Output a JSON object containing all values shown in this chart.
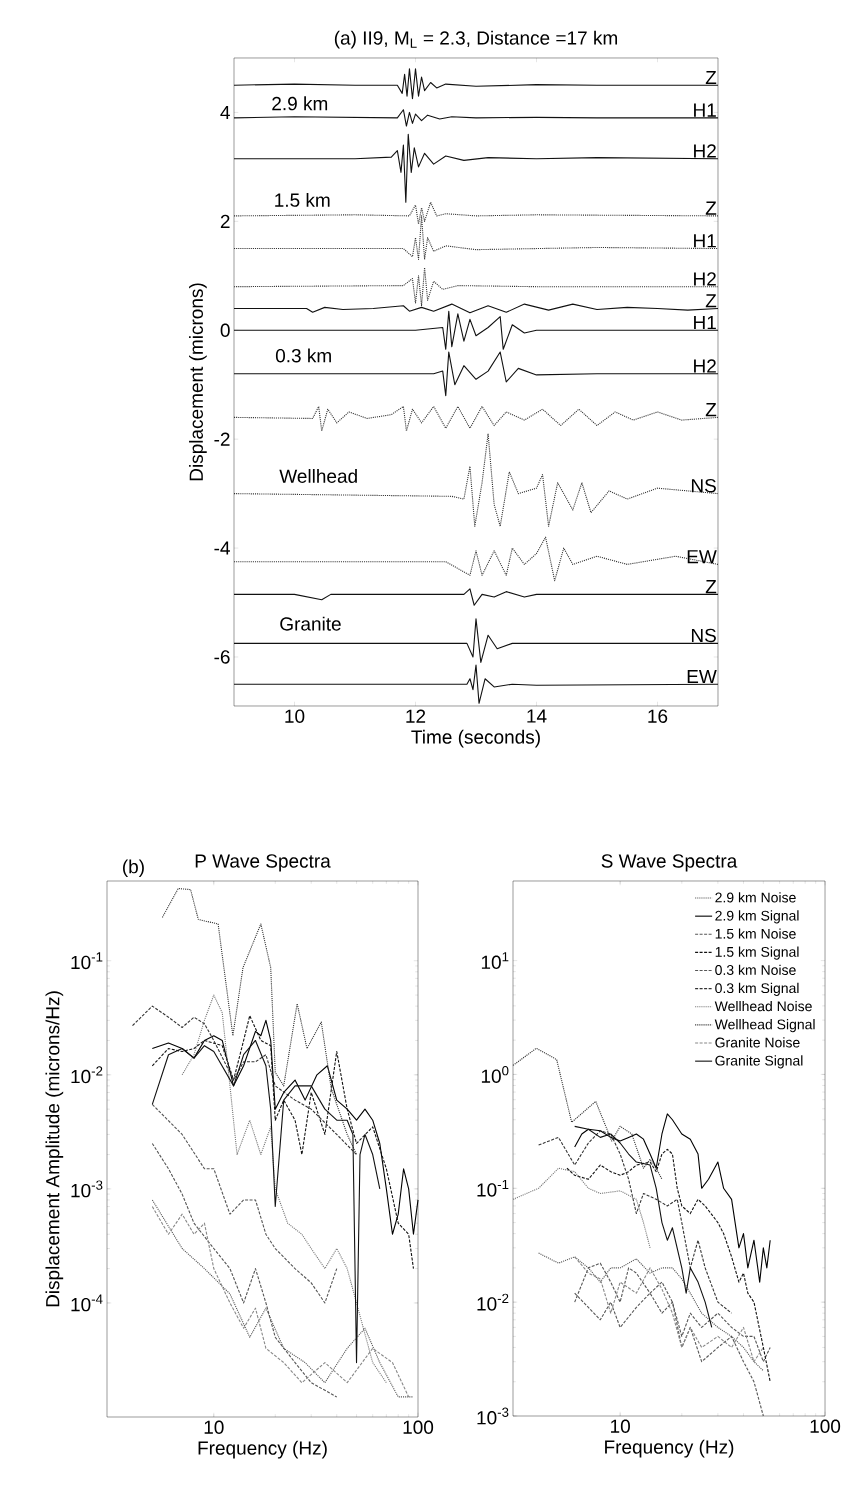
{
  "chart_data": [
    {
      "type": "line",
      "title": "(a) II9, M$_{L}$ = 2.3, Distance =17 km",
      "xlabel": "Time (seconds)",
      "ylabel": "Displacement (microns)",
      "xlim": [
        9,
        17
      ],
      "ylim": [
        -6.9,
        5.0
      ],
      "xticks": [
        10,
        12,
        14,
        16
      ],
      "yticks": [
        -6,
        -4,
        -2,
        0,
        2,
        4
      ],
      "annotations": [
        "2.9 km",
        "1.5 km",
        "0.3 km",
        "Wellhead",
        "Granite"
      ],
      "series": [
        {
          "name": "Z",
          "color": "#111111",
          "line_style": "solid",
          "x": [
            9,
            10,
            11,
            11.7,
            11.78,
            11.82,
            11.86,
            11.9,
            11.95,
            12.0,
            12.05,
            12.1,
            12.15,
            12.25,
            12.35,
            12.5,
            13,
            14,
            15,
            16,
            17
          ],
          "values": [
            4.5,
            4.52,
            4.5,
            4.5,
            4.35,
            4.7,
            4.3,
            4.8,
            4.25,
            4.8,
            4.3,
            4.65,
            4.4,
            4.55,
            4.45,
            4.52,
            4.48,
            4.51,
            4.5,
            4.5,
            4.5
          ]
        },
        {
          "name": "H1",
          "color": "#111111",
          "line_style": "solid",
          "x": [
            9,
            10,
            11.7,
            11.8,
            11.85,
            11.9,
            11.95,
            12.0,
            12.1,
            12.2,
            12.4,
            12.6,
            13,
            14,
            15,
            17
          ],
          "values": [
            3.9,
            3.92,
            3.9,
            4.05,
            3.75,
            4.0,
            3.8,
            3.97,
            3.85,
            3.95,
            3.88,
            3.92,
            3.9,
            3.91,
            3.9,
            3.9
          ]
        },
        {
          "name": "H2",
          "color": "#111111",
          "line_style": "solid",
          "x": [
            9,
            11,
            11.6,
            11.7,
            11.76,
            11.8,
            11.84,
            11.88,
            11.93,
            11.98,
            12.05,
            12.15,
            12.3,
            12.5,
            12.8,
            13.2,
            14,
            15,
            17
          ],
          "values": [
            3.15,
            3.15,
            3.18,
            3.3,
            2.9,
            3.4,
            2.35,
            3.6,
            2.9,
            3.35,
            3.0,
            3.25,
            3.05,
            3.2,
            3.12,
            3.17,
            3.15,
            3.17,
            3.15
          ]
        },
        {
          "name": "Z",
          "color": "#333333",
          "line_style": "dotted",
          "x": [
            9,
            11,
            11.9,
            12.0,
            12.05,
            12.1,
            12.15,
            12.25,
            12.35,
            12.5,
            13,
            14,
            17
          ],
          "values": [
            2.1,
            2.12,
            2.1,
            2.3,
            1.95,
            2.25,
            2.0,
            2.35,
            2.1,
            2.14,
            2.1,
            2.12,
            2.1
          ]
        },
        {
          "name": "H1",
          "color": "#333333",
          "line_style": "dotted",
          "x": [
            9,
            11.8,
            11.95,
            12.0,
            12.05,
            12.1,
            12.15,
            12.2,
            12.3,
            12.5,
            13,
            14,
            15,
            17
          ],
          "values": [
            1.5,
            1.5,
            1.35,
            1.7,
            1.3,
            2.1,
            1.3,
            1.7,
            1.45,
            1.55,
            1.48,
            1.5,
            1.52,
            1.5
          ]
        },
        {
          "name": "H2",
          "color": "#333333",
          "line_style": "dotted",
          "x": [
            9,
            11.8,
            11.95,
            12.0,
            12.05,
            12.1,
            12.15,
            12.2,
            12.3,
            12.45,
            12.7,
            14,
            17
          ],
          "values": [
            0.8,
            0.82,
            0.95,
            0.5,
            1.0,
            0.45,
            1.15,
            0.55,
            0.9,
            0.75,
            0.82,
            0.8,
            0.8
          ]
        },
        {
          "name": "Z",
          "color": "#111111",
          "line_style": "solid",
          "x": [
            9,
            10.2,
            10.3,
            10.5,
            10.8,
            11.3,
            11.8,
            11.9,
            12.1,
            12.3,
            12.6,
            12.9,
            13.2,
            13.5,
            13.8,
            14.2,
            14.6,
            15,
            15.5,
            16,
            16.5,
            17
          ],
          "values": [
            0.4,
            0.4,
            0.33,
            0.42,
            0.38,
            0.4,
            0.45,
            0.35,
            0.42,
            0.35,
            0.48,
            0.32,
            0.45,
            0.33,
            0.48,
            0.37,
            0.48,
            0.38,
            0.42,
            0.4,
            0.37,
            0.4
          ]
        },
        {
          "name": "H1",
          "color": "#111111",
          "line_style": "solid",
          "x": [
            9,
            12,
            12.45,
            12.5,
            12.55,
            12.6,
            12.7,
            12.8,
            12.9,
            13.0,
            13.2,
            13.4,
            13.45,
            13.6,
            13.8,
            14,
            15,
            17
          ],
          "values": [
            0.0,
            0.0,
            0.05,
            -0.35,
            0.35,
            -0.3,
            0.3,
            -0.2,
            0.2,
            -0.1,
            0.05,
            0.25,
            -0.35,
            0.1,
            -0.05,
            0.0,
            0.0,
            0.0
          ]
        },
        {
          "name": "H2",
          "color": "#111111",
          "line_style": "solid",
          "x": [
            9,
            12.3,
            12.45,
            12.5,
            12.55,
            12.65,
            12.8,
            13.0,
            13.2,
            13.4,
            13.5,
            13.7,
            14,
            15,
            17
          ],
          "values": [
            -0.8,
            -0.8,
            -0.75,
            -1.2,
            -0.4,
            -1.0,
            -0.65,
            -0.9,
            -0.75,
            -0.4,
            -0.95,
            -0.7,
            -0.82,
            -0.8,
            -0.8
          ]
        },
        {
          "name": "Z",
          "color": "#333333",
          "line_style": "dotted",
          "x": [
            9,
            10.3,
            10.4,
            10.45,
            10.55,
            10.7,
            10.9,
            11.2,
            11.6,
            11.8,
            11.85,
            11.95,
            12.1,
            12.3,
            12.5,
            12.7,
            12.9,
            13.1,
            13.3,
            13.5,
            13.8,
            14.1,
            14.4,
            14.7,
            15.0,
            15.3,
            15.6,
            16,
            16.4,
            17
          ],
          "values": [
            -1.6,
            -1.62,
            -1.4,
            -1.85,
            -1.45,
            -1.7,
            -1.5,
            -1.62,
            -1.55,
            -1.4,
            -1.85,
            -1.45,
            -1.7,
            -1.4,
            -1.8,
            -1.4,
            -1.8,
            -1.4,
            -1.75,
            -1.5,
            -1.65,
            -1.45,
            -1.75,
            -1.45,
            -1.75,
            -1.5,
            -1.65,
            -1.5,
            -1.65,
            -1.6
          ]
        },
        {
          "name": "NS",
          "color": "#333333",
          "line_style": "dotted",
          "x": [
            9,
            12.6,
            12.8,
            12.9,
            12.98,
            13.1,
            13.2,
            13.3,
            13.4,
            13.55,
            13.7,
            14.0,
            14.1,
            14.2,
            14.35,
            14.6,
            14.75,
            14.9,
            15.2,
            15.5,
            16,
            16.5,
            17
          ],
          "values": [
            -3.0,
            -3.05,
            -3.1,
            -2.5,
            -3.6,
            -2.8,
            -1.9,
            -3.2,
            -3.6,
            -2.6,
            -3.0,
            -2.9,
            -2.65,
            -3.6,
            -2.8,
            -3.3,
            -2.8,
            -3.35,
            -2.95,
            -3.1,
            -2.9,
            -2.95,
            -3.0
          ]
        },
        {
          "name": "EW",
          "color": "#333333",
          "line_style": "dotted",
          "x": [
            9,
            11,
            12.5,
            12.9,
            13.0,
            13.1,
            13.3,
            13.5,
            13.6,
            13.8,
            14.0,
            14.15,
            14.3,
            14.45,
            14.6,
            15.0,
            15.5,
            16.3,
            17
          ],
          "values": [
            -4.25,
            -4.25,
            -4.25,
            -4.5,
            -4.05,
            -4.5,
            -4.05,
            -4.5,
            -4.0,
            -4.3,
            -4.1,
            -3.8,
            -4.6,
            -4.0,
            -4.3,
            -4.15,
            -4.3,
            -4.15,
            -4.3
          ]
        },
        {
          "name": "Z",
          "color": "#111111",
          "line_style": "solid",
          "x": [
            9,
            10,
            10.45,
            10.6,
            12.8,
            12.9,
            12.97,
            13.1,
            13.3,
            13.5,
            13.8,
            14,
            15,
            17
          ],
          "values": [
            -4.85,
            -4.85,
            -4.95,
            -4.85,
            -4.85,
            -4.75,
            -5.05,
            -4.85,
            -4.9,
            -4.8,
            -4.9,
            -4.85,
            -4.85,
            -4.85
          ]
        },
        {
          "name": "NS",
          "color": "#111111",
          "line_style": "solid",
          "x": [
            9,
            12.85,
            12.95,
            13.0,
            13.08,
            13.2,
            13.35,
            13.6,
            14,
            17
          ],
          "values": [
            -5.75,
            -5.75,
            -6.0,
            -5.3,
            -6.1,
            -5.6,
            -5.85,
            -5.75,
            -5.75,
            -5.75
          ]
        },
        {
          "name": "EW",
          "color": "#111111",
          "line_style": "solid",
          "x": [
            9,
            12.85,
            12.9,
            12.95,
            13.0,
            13.05,
            13.15,
            13.3,
            13.6,
            14,
            17
          ],
          "values": [
            -6.5,
            -6.5,
            -6.4,
            -6.6,
            -6.15,
            -6.85,
            -6.4,
            -6.55,
            -6.5,
            -6.52,
            -6.5
          ]
        }
      ]
    },
    {
      "type": "line",
      "title": "P Wave Spectra",
      "xlabel": "Frequency (Hz)",
      "ylabel": "Displacement Amplitude (microns/Hz)",
      "log": "xy",
      "xlim": [
        3,
        100
      ],
      "ylim": [
        1e-05,
        0.5
      ],
      "xticks": [
        10,
        100
      ],
      "yticks": [
        {
          "value": 0.0001,
          "label": "10$^{-4}$"
        },
        {
          "value": 0.001,
          "label": "10$^{-3}$"
        },
        {
          "value": 0.01,
          "label": "10$^{-2}$"
        },
        {
          "value": 0.1,
          "label": "10$^{-1}$"
        }
      ],
      "annotations": [
        "(b)"
      ],
      "series": [
        {
          "color": "#555555",
          "line_style": "dotted",
          "x": [
            5,
            7,
            9,
            12,
            15,
            18,
            22,
            28,
            35,
            45,
            55,
            65,
            80,
            95
          ],
          "values": [
            0.0008,
            0.0003,
            0.0002,
            0.00012,
            5e-05,
            9e-05,
            4e-05,
            3e-05,
            2e-05,
            4e-05,
            6e-05,
            3e-05,
            1.5e-05,
            1.5e-05
          ]
        },
        {
          "color": "#000000",
          "line_style": "solid",
          "x": [
            5,
            6,
            7,
            8,
            9,
            10,
            11,
            12.5,
            14,
            16,
            17,
            18,
            19,
            20,
            22,
            25,
            28,
            32,
            36,
            40,
            45,
            50,
            55,
            60,
            65,
            70,
            75,
            80,
            85,
            90,
            95,
            100
          ],
          "values": [
            0.017,
            0.019,
            0.017,
            0.014,
            0.02,
            0.022,
            0.02,
            0.008,
            0.012,
            0.024,
            0.022,
            0.03,
            0.02,
            0.005,
            0.007,
            0.009,
            0.006,
            0.01,
            0.012,
            0.006,
            0.005,
            0.004,
            0.005,
            0.004,
            0.0025,
            0.001,
            0.0004,
            0.0006,
            0.0015,
            0.001,
            0.0004,
            0.0008
          ]
        },
        {
          "color": "#555555",
          "line_style": "dashed",
          "x": [
            5,
            6,
            7,
            8,
            10,
            12,
            14,
            16,
            18,
            20,
            25,
            30,
            40
          ],
          "values": [
            0.0025,
            0.0015,
            0.0009,
            0.0005,
            0.0003,
            0.0002,
            0.0001,
            0.0002,
            0.0001,
            5e-05,
            3e-05,
            2e-05,
            1.5e-05
          ]
        },
        {
          "color": "#111111",
          "line_style": "dashed",
          "x": [
            5,
            6,
            7,
            8,
            9,
            11,
            12.5,
            14,
            15,
            17,
            19,
            20,
            22,
            25,
            27,
            30,
            35,
            40,
            45,
            50,
            60,
            70,
            80,
            90,
            95
          ],
          "values": [
            0.012,
            0.017,
            0.016,
            0.017,
            0.02,
            0.018,
            0.009,
            0.02,
            0.033,
            0.02,
            0.018,
            0.004,
            0.006,
            0.004,
            0.002,
            0.007,
            0.003,
            0.016,
            0.005,
            0.0025,
            0.0035,
            0.0015,
            0.0005,
            0.0004,
            0.0002
          ]
        },
        {
          "color": "#555555",
          "line_style": "dashed",
          "x": [
            5,
            7,
            9,
            10,
            12,
            14,
            16,
            18,
            20,
            25,
            30,
            35,
            40
          ],
          "values": [
            0.0055,
            0.003,
            0.0015,
            0.0015,
            0.0006,
            0.0008,
            0.0008,
            0.0004,
            0.0003,
            0.0002,
            0.00015,
            0.0001,
            0.0002
          ]
        },
        {
          "color": "#333333",
          "line_style": "dashed",
          "x": [
            4,
            5,
            6,
            7,
            8,
            9,
            10,
            12.5,
            14,
            16,
            18,
            20,
            25,
            30,
            40,
            50
          ],
          "values": [
            0.027,
            0.04,
            0.032,
            0.026,
            0.032,
            0.028,
            0.02,
            0.009,
            0.013,
            0.013,
            0.015,
            0.008,
            0.006,
            0.005,
            0.003,
            0.002
          ]
        },
        {
          "color": "#777777",
          "line_style": "dotted",
          "x": [
            7,
            8,
            9,
            10,
            11,
            12,
            13,
            15,
            17,
            19,
            20,
            23,
            27,
            30,
            35,
            40,
            45,
            50,
            60,
            70
          ],
          "values": [
            0.01,
            0.015,
            0.03,
            0.05,
            0.035,
            0.008,
            0.002,
            0.004,
            0.002,
            0.0035,
            0.001,
            0.0005,
            0.0004,
            0.0003,
            0.0002,
            0.0003,
            0.0002,
            0.0001,
            3e-05,
            2e-05
          ]
        },
        {
          "color": "#333333",
          "line_style": "dotted",
          "x": [
            5.6,
            6.7,
            7.7,
            8.4,
            10.5,
            12.4,
            13.9,
            17,
            19,
            20,
            22,
            25.6,
            28.6,
            33.6,
            37.6,
            45,
            50
          ],
          "values": [
            0.24,
            0.43,
            0.42,
            0.23,
            0.21,
            0.022,
            0.087,
            0.21,
            0.087,
            0.0105,
            0.008,
            0.042,
            0.017,
            0.029,
            0.0076,
            0.003,
            0.002
          ]
        },
        {
          "color": "#888888",
          "line_style": "dashed",
          "x": [
            5,
            6,
            7,
            8,
            9,
            10,
            12,
            14,
            16,
            18,
            22,
            27,
            35,
            45,
            60,
            75,
            90
          ],
          "values": [
            0.0007,
            0.0004,
            0.0006,
            0.0004,
            0.0005,
            0.0002,
            0.0001,
            6e-05,
            9e-05,
            4e-05,
            3e-05,
            2e-05,
            3e-05,
            2e-05,
            4e-05,
            3e-05,
            1.5e-05
          ]
        },
        {
          "color": "#111111",
          "line_style": "solid",
          "x": [
            5,
            6,
            7,
            8,
            9,
            10,
            12.5,
            14,
            16,
            18,
            19,
            20,
            22,
            25,
            30,
            35,
            40,
            45,
            48,
            50,
            52,
            55,
            60,
            65
          ],
          "values": [
            0.0055,
            0.015,
            0.017,
            0.014,
            0.018,
            0.016,
            0.008,
            0.015,
            0.02,
            0.012,
            0.005,
            0.0007,
            0.006,
            0.008,
            0.008,
            0.005,
            0.004,
            0.004,
            0.003,
            3e-05,
            0.002,
            0.003,
            0.002,
            0.001
          ]
        }
      ]
    },
    {
      "type": "line",
      "title": "S Wave Spectra",
      "xlabel": "Frequency (Hz)",
      "log": "xy",
      "legend": "top right",
      "xlim": [
        3,
        100
      ],
      "ylim": [
        0.001,
        50
      ],
      "xticks": [
        10,
        100
      ],
      "yticks": [
        {
          "value": 0.001,
          "label": "10$^{-3}$"
        },
        {
          "value": 0.01,
          "label": "10$^{-2}$"
        },
        {
          "value": 0.1,
          "label": "10$^{-1}$"
        },
        {
          "value": 1,
          "label": "10$^{0}$"
        },
        {
          "value": 10,
          "label": "10$^{1}$"
        }
      ],
      "series": [
        {
          "name": "2.9 km Noise",
          "color": "#555555",
          "line_style": "dotted",
          "x": [
            4,
            5,
            6,
            7,
            8,
            9,
            10,
            12,
            14,
            16,
            18,
            20,
            22,
            25,
            30,
            35,
            40,
            45,
            50
          ],
          "values": [
            0.027,
            0.022,
            0.025,
            0.02,
            0.015,
            0.02,
            0.02,
            0.024,
            0.018,
            0.02,
            0.02,
            0.016,
            0.012,
            0.008,
            0.006,
            0.005,
            0.004,
            0.003,
            0.0025
          ]
        },
        {
          "name": "2.9 km Signal",
          "color": "#000000",
          "line_style": "solid",
          "x": [
            6,
            6.5,
            7,
            8,
            9,
            10,
            11,
            12,
            13,
            14,
            15,
            16,
            17,
            18,
            20,
            22,
            24,
            25,
            27,
            30,
            32,
            35,
            38,
            40,
            42,
            45,
            48,
            50,
            52,
            54
          ],
          "values": [
            0.23,
            0.3,
            0.33,
            0.32,
            0.28,
            0.26,
            0.28,
            0.3,
            0.27,
            0.2,
            0.15,
            0.3,
            0.45,
            0.4,
            0.3,
            0.27,
            0.2,
            0.1,
            0.12,
            0.17,
            0.1,
            0.08,
            0.03,
            0.04,
            0.02,
            0.035,
            0.015,
            0.03,
            0.02,
            0.035
          ]
        },
        {
          "name": "1.5 km Noise",
          "color": "#555555",
          "line_style": "dashed",
          "x": [
            6,
            7,
            8,
            9,
            10,
            11,
            12,
            14,
            16,
            18,
            20,
            22,
            25,
            30,
            35,
            40,
            45,
            50,
            54
          ],
          "values": [
            0.01,
            0.02,
            0.022,
            0.015,
            0.01,
            0.02,
            0.018,
            0.012,
            0.015,
            0.01,
            0.005,
            0.008,
            0.006,
            0.008,
            0.006,
            0.005,
            0.005,
            0.003,
            0.004
          ]
        },
        {
          "name": "1.5 km Signal",
          "color": "#111111",
          "line_style": "dashed",
          "x": [
            5.5,
            6,
            7,
            8,
            9,
            10,
            11,
            12,
            14,
            15,
            16,
            17,
            18,
            19,
            20,
            22,
            24,
            26,
            30,
            32,
            35,
            38,
            40,
            42,
            45,
            50,
            54
          ],
          "values": [
            0.15,
            0.13,
            0.12,
            0.16,
            0.14,
            0.13,
            0.14,
            0.16,
            0.17,
            0.14,
            0.2,
            0.22,
            0.2,
            0.1,
            0.07,
            0.06,
            0.08,
            0.07,
            0.05,
            0.04,
            0.025,
            0.015,
            0.018,
            0.012,
            0.01,
            0.004,
            0.002
          ]
        },
        {
          "name": "0.3 km Noise",
          "color": "#555555",
          "line_style": "dashed",
          "x": [
            6,
            7,
            8,
            9,
            10,
            12,
            14,
            16,
            18,
            20,
            22,
            25,
            30,
            35,
            40,
            45,
            50
          ],
          "values": [
            0.012,
            0.009,
            0.007,
            0.01,
            0.006,
            0.009,
            0.012,
            0.008,
            0.01,
            0.004,
            0.006,
            0.003,
            0.004,
            0.005,
            0.003,
            0.002,
            0.001
          ]
        },
        {
          "name": "0.3 km Signal",
          "color": "#333333",
          "line_style": "dashed",
          "x": [
            4,
            5,
            6,
            7,
            8,
            9,
            10,
            11,
            12,
            13,
            15,
            17,
            19,
            20,
            22,
            24,
            26,
            30,
            35
          ],
          "values": [
            0.24,
            0.28,
            0.16,
            0.25,
            0.32,
            0.3,
            0.2,
            0.12,
            0.06,
            0.09,
            0.08,
            0.07,
            0.08,
            0.05,
            0.02,
            0.035,
            0.02,
            0.01,
            0.008
          ]
        },
        {
          "name": "Wellhead Noise",
          "color": "#777777",
          "line_style": "dotted",
          "x": [
            3,
            4,
            5,
            6,
            7,
            8,
            10,
            12,
            13,
            14
          ],
          "values": [
            0.08,
            0.1,
            0.15,
            0.14,
            0.1,
            0.09,
            0.095,
            0.08,
            0.05,
            0.03
          ]
        },
        {
          "name": "Wellhead Signal",
          "color": "#333333",
          "line_style": "dotted",
          "x": [
            3,
            3.9,
            4.9,
            5.8,
            7.6,
            9.1,
            10,
            11.4,
            13,
            14,
            15,
            16
          ],
          "values": [
            1.2,
            1.7,
            1.35,
            0.38,
            0.58,
            0.26,
            0.35,
            0.3,
            0.15,
            0.18,
            0.15,
            0.12
          ]
        },
        {
          "name": "Granite Noise",
          "color": "#888888",
          "line_style": "dashed",
          "x": [
            6,
            7,
            8,
            9,
            10,
            12,
            14,
            16,
            18,
            20,
            22,
            25,
            30,
            35,
            40,
            45,
            50
          ],
          "values": [
            0.025,
            0.018,
            0.016,
            0.008,
            0.015,
            0.012,
            0.02,
            0.013,
            0.008,
            0.004,
            0.006,
            0.004,
            0.005,
            0.004,
            0.006,
            0.003,
            0.004
          ]
        },
        {
          "name": "Granite Signal",
          "color": "#111111",
          "line_style": "solid",
          "x": [
            6,
            7,
            8,
            9,
            10,
            11,
            12,
            14,
            15,
            16,
            17,
            18,
            20,
            21,
            22,
            24,
            26,
            28
          ],
          "values": [
            0.35,
            0.33,
            0.28,
            0.3,
            0.25,
            0.2,
            0.17,
            0.16,
            0.1,
            0.05,
            0.035,
            0.045,
            0.02,
            0.012,
            0.02,
            0.015,
            0.01,
            0.006
          ]
        }
      ]
    }
  ]
}
